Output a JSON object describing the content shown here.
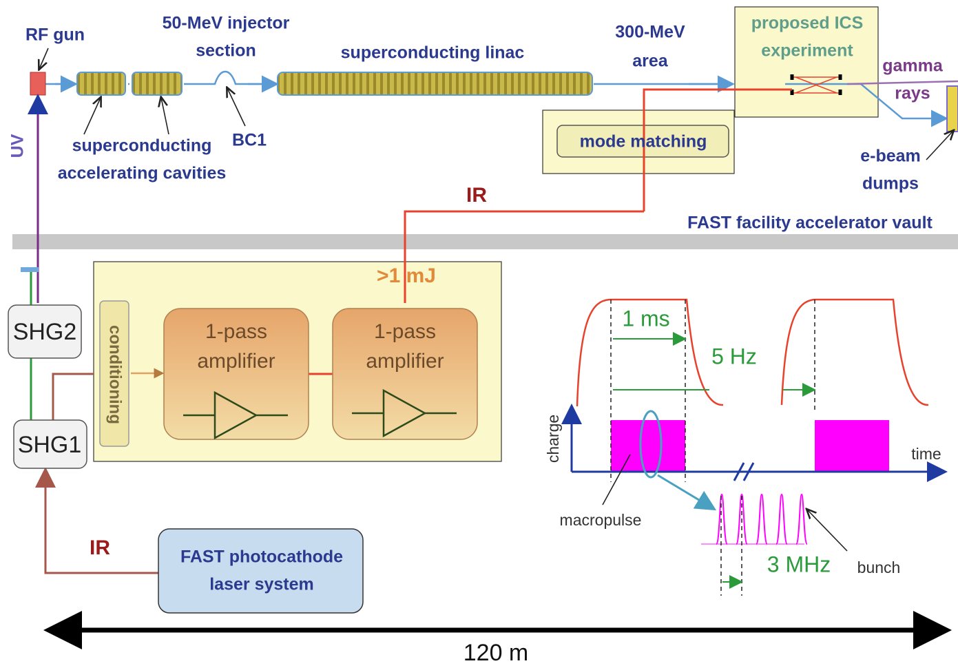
{
  "beamline": {
    "rf_gun": "RF gun",
    "injector": [
      "50-MeV injector",
      "section"
    ],
    "linac": "superconducting linac",
    "area": [
      "300-MeV",
      "area"
    ],
    "ics": [
      "proposed ICS",
      "experiment"
    ],
    "gamma": [
      "gamma",
      "rays"
    ],
    "cavities": [
      "superconducting",
      "accelerating cavities"
    ],
    "bc1": "BC1",
    "uv": "UV",
    "mode_matching": "mode matching",
    "dumps": [
      "e-beam",
      "dumps"
    ],
    "ir_top": "IR",
    "vault": "FAST facility accelerator vault"
  },
  "laser": {
    "energy": ">1 mJ",
    "shg2": "SHG2",
    "shg1": "SHG1",
    "conditioning": "conditioning",
    "amp1": [
      "1-pass",
      "amplifier"
    ],
    "amp2": [
      "1-pass",
      "amplifier"
    ],
    "ir_bottom": "IR",
    "source": [
      "FAST photocathode",
      "laser system"
    ]
  },
  "timing": {
    "pulse_length": "1 ms",
    "rep_rate": "5 Hz",
    "y_label": "charge",
    "x_label": "time",
    "macropulse": "macropulse",
    "bunch_rate": "3 MHz",
    "bunch": "bunch"
  },
  "scale": "120 m"
}
